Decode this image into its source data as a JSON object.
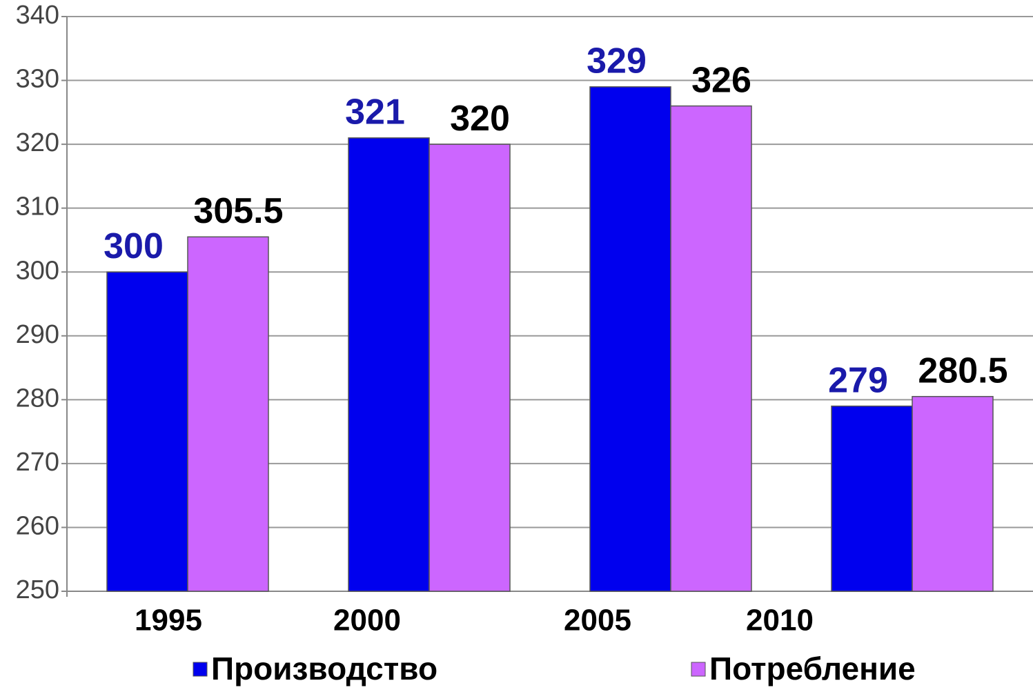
{
  "chart_data": {
    "type": "bar",
    "categories": [
      "1995",
      "2000",
      "2005",
      "2010"
    ],
    "series": [
      {
        "name": "Производство",
        "color": "#0000ee",
        "label_color": "#1a1aaa",
        "values": [
          300,
          321,
          329,
          279
        ]
      },
      {
        "name": "Потребление",
        "color": "#cc66ff",
        "label_color": "#000000",
        "values": [
          305.5,
          320,
          326,
          280.5
        ]
      }
    ],
    "ylim": [
      250,
      340
    ],
    "yticks": [
      250,
      260,
      270,
      280,
      290,
      300,
      310,
      320,
      330,
      340
    ],
    "grid": true,
    "legend": "bottom"
  }
}
